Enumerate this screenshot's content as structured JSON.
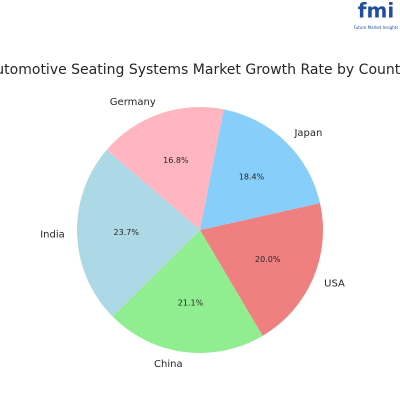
{
  "logo": {
    "mark": "fmi",
    "tagline": "Future Market Insights"
  },
  "chart_data": {
    "type": "pie",
    "title": "Automotive Seating Systems Market Growth Rate by Country",
    "categories": [
      "USA",
      "China",
      "India",
      "Germany",
      "Japan"
    ],
    "values": [
      20.0,
      21.1,
      23.7,
      16.8,
      18.4
    ],
    "value_labels": [
      "20.0%",
      "21.1%",
      "23.7%",
      "16.8%",
      "18.4%"
    ],
    "colors": [
      "#f08080",
      "#90ee90",
      "#add8e6",
      "#ffb6c1",
      "#87cefa"
    ]
  }
}
